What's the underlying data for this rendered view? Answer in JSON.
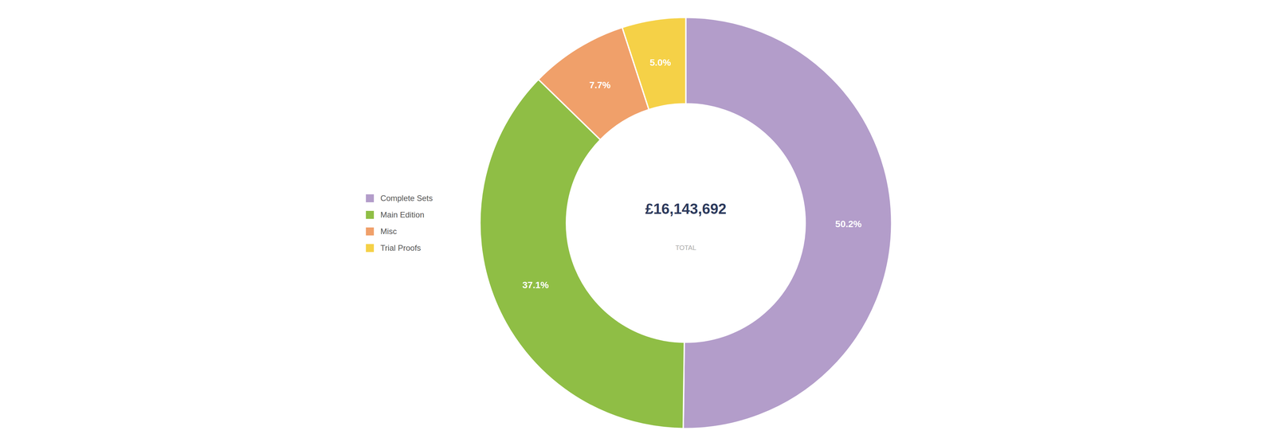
{
  "chart_data": {
    "type": "pie",
    "title": "£16,143,692",
    "subtitle": "TOTAL",
    "categories": [
      "Complete Sets",
      "Main Edition",
      "Misc",
      "Trial Proofs"
    ],
    "values": [
      50.2,
      37.1,
      7.7,
      5.0
    ],
    "value_labels": [
      "50.2%",
      "37.1%",
      "7.7%",
      "5.0%"
    ],
    "colors": [
      "#b39dca",
      "#8fbe45",
      "#f0a06a",
      "#f5d147"
    ],
    "data_labels": true,
    "legend": "left"
  }
}
